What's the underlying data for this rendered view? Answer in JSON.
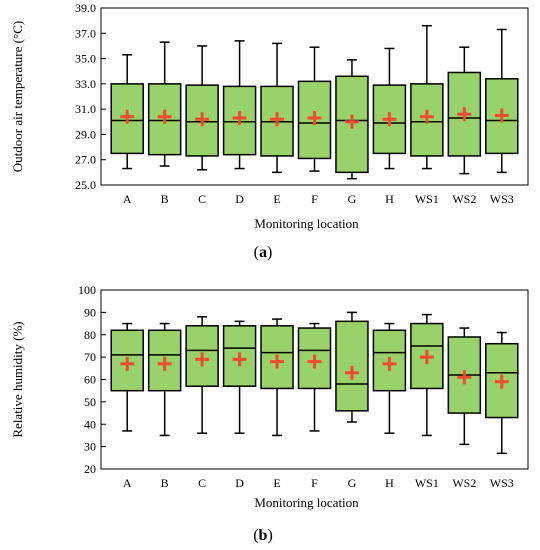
{
  "chart_data": [
    {
      "type": "box",
      "panel_label": "a",
      "xlabel": "Monitoring location",
      "ylabel": "Outdoor air temperature (°C)",
      "ylim": [
        25.0,
        39.0
      ],
      "yticks": [
        "25.0",
        "27.0",
        "29.0",
        "31.0",
        "33.0",
        "35.0",
        "37.0",
        "39.0"
      ],
      "categories": [
        "A",
        "B",
        "C",
        "D",
        "E",
        "F",
        "G",
        "H",
        "WS1",
        "WS2",
        "WS3"
      ],
      "boxes": [
        {
          "min": 26.3,
          "q1": 27.5,
          "median": 30.1,
          "q3": 33.0,
          "max": 35.3,
          "mean": 30.4
        },
        {
          "min": 26.5,
          "q1": 27.4,
          "median": 30.1,
          "q3": 33.0,
          "max": 36.3,
          "mean": 30.4
        },
        {
          "min": 26.2,
          "q1": 27.3,
          "median": 30.0,
          "q3": 32.9,
          "max": 36.0,
          "mean": 30.2
        },
        {
          "min": 26.3,
          "q1": 27.4,
          "median": 30.0,
          "q3": 32.8,
          "max": 36.4,
          "mean": 30.3
        },
        {
          "min": 26.0,
          "q1": 27.3,
          "median": 30.0,
          "q3": 32.8,
          "max": 36.2,
          "mean": 30.2
        },
        {
          "min": 26.1,
          "q1": 27.1,
          "median": 29.9,
          "q3": 33.2,
          "max": 35.9,
          "mean": 30.3
        },
        {
          "min": 25.5,
          "q1": 26.0,
          "median": 30.1,
          "q3": 33.6,
          "max": 34.9,
          "mean": 30.0
        },
        {
          "min": 26.3,
          "q1": 27.5,
          "median": 29.9,
          "q3": 32.9,
          "max": 35.8,
          "mean": 30.2
        },
        {
          "min": 26.3,
          "q1": 27.3,
          "median": 30.0,
          "q3": 33.0,
          "max": 37.6,
          "mean": 30.4
        },
        {
          "min": 25.9,
          "q1": 27.3,
          "median": 30.3,
          "q3": 33.9,
          "max": 35.9,
          "mean": 30.6
        },
        {
          "min": 26.0,
          "q1": 27.5,
          "median": 30.1,
          "q3": 33.4,
          "max": 37.3,
          "mean": 30.5
        }
      ]
    },
    {
      "type": "box",
      "panel_label": "b",
      "xlabel": "Monitoring location",
      "ylabel": "Relative humidity (%)",
      "ylim": [
        20,
        100
      ],
      "yticks": [
        "20",
        "30",
        "40",
        "50",
        "60",
        "70",
        "80",
        "90",
        "100"
      ],
      "categories": [
        "A",
        "B",
        "C",
        "D",
        "E",
        "F",
        "G",
        "H",
        "WS1",
        "WS2",
        "WS3"
      ],
      "boxes": [
        {
          "min": 37,
          "q1": 55,
          "median": 71,
          "q3": 82,
          "max": 85,
          "mean": 67
        },
        {
          "min": 35,
          "q1": 55,
          "median": 71,
          "q3": 82,
          "max": 85,
          "mean": 67
        },
        {
          "min": 36,
          "q1": 57,
          "median": 73,
          "q3": 84,
          "max": 88,
          "mean": 69
        },
        {
          "min": 36,
          "q1": 57,
          "median": 74,
          "q3": 84,
          "max": 86,
          "mean": 69
        },
        {
          "min": 35,
          "q1": 56,
          "median": 72,
          "q3": 84,
          "max": 87,
          "mean": 68
        },
        {
          "min": 37,
          "q1": 56,
          "median": 73,
          "q3": 83,
          "max": 85,
          "mean": 68
        },
        {
          "min": 41,
          "q1": 46,
          "median": 58,
          "q3": 86,
          "max": 90,
          "mean": 63
        },
        {
          "min": 36,
          "q1": 55,
          "median": 72,
          "q3": 82,
          "max": 85,
          "mean": 67
        },
        {
          "min": 35,
          "q1": 56,
          "median": 75,
          "q3": 85,
          "max": 89,
          "mean": 70
        },
        {
          "min": 31,
          "q1": 45,
          "median": 62,
          "q3": 79,
          "max": 83,
          "mean": 61
        },
        {
          "min": 27,
          "q1": 43,
          "median": 63,
          "q3": 76,
          "max": 81,
          "mean": 59
        }
      ]
    }
  ],
  "colors": {
    "box_fill": "#99d16a",
    "mean_marker": "#f04a30",
    "line": "#000000"
  }
}
